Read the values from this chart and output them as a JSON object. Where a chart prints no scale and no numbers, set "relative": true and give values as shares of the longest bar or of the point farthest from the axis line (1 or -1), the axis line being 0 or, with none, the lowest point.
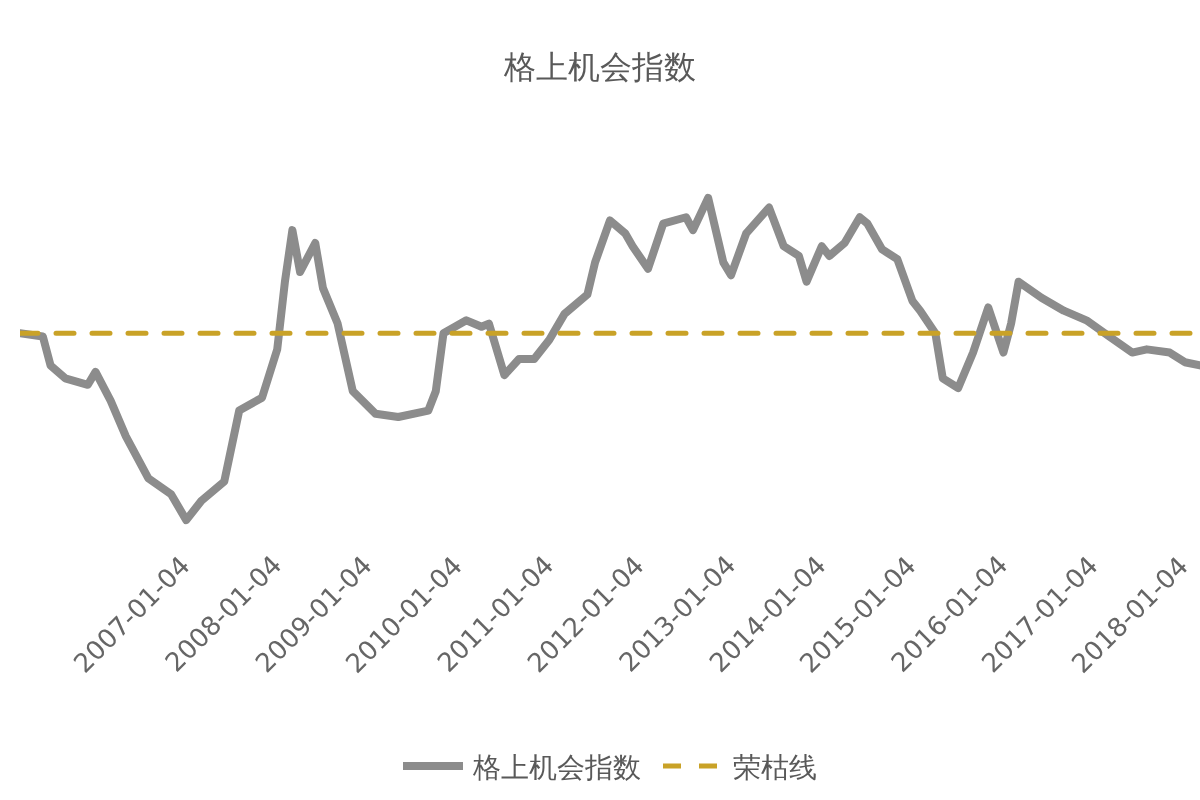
{
  "chart_data": {
    "type": "line",
    "title": "格上机会指数",
    "relative": true,
    "legend": "bottom",
    "marker": "none",
    "line_style": "solid",
    "xlim": [
      "2005-10",
      "2018-10"
    ],
    "xticks": [
      {
        "value": "2007-01-04",
        "label": "2007-01-04"
      },
      {
        "value": "2008-01-04",
        "label": "2008-01-04"
      },
      {
        "value": "2009-01-04",
        "label": "2009-01-04"
      },
      {
        "value": "2010-01-04",
        "label": "2010-01-04"
      },
      {
        "value": "2011-01-04",
        "label": "2011-01-04"
      },
      {
        "value": "2012-01-04",
        "label": "2012-01-04"
      },
      {
        "value": "2013-01-04",
        "label": "2013-01-04"
      },
      {
        "value": "2014-01-04",
        "label": "2014-01-04"
      },
      {
        "value": "2015-01-04",
        "label": "2015-01-04"
      },
      {
        "value": "2016-01-04",
        "label": "2016-01-04"
      },
      {
        "value": "2017-01-04",
        "label": "2017-01-04"
      },
      {
        "value": "2018-01-04",
        "label": "2018-01-04"
      }
    ],
    "x": [
      "2005-10",
      "2006-01",
      "2006-02",
      "2006-04",
      "2006-07",
      "2006-08",
      "2006-10",
      "2006-12",
      "2007-03",
      "2007-06",
      "2007-08",
      "2007-10",
      "2008-01",
      "2008-03",
      "2008-06",
      "2008-08",
      "2008-09",
      "2008-10",
      "2008-11",
      "2009-01",
      "2009-02",
      "2009-04",
      "2009-06",
      "2009-09",
      "2009-12",
      "2010-04",
      "2010-05",
      "2010-06",
      "2010-09",
      "2010-11",
      "2010-12",
      "2011-02",
      "2011-04",
      "2011-06",
      "2011-08",
      "2011-10",
      "2012-01",
      "2012-02",
      "2012-04",
      "2012-06",
      "2012-07",
      "2012-09",
      "2012-11",
      "2013-02",
      "2013-03",
      "2013-05",
      "2013-07",
      "2013-08",
      "2013-10",
      "2014-01",
      "2014-03",
      "2014-05",
      "2014-06",
      "2014-08",
      "2014-09",
      "2014-11",
      "2015-01",
      "2015-02",
      "2015-04",
      "2015-06",
      "2015-08",
      "2015-09",
      "2015-11",
      "2015-12",
      "2016-02",
      "2016-04",
      "2016-06",
      "2016-08",
      "2016-09",
      "2016-10",
      "2017-01",
      "2017-04",
      "2017-07",
      "2017-10",
      "2018-01",
      "2018-03",
      "2018-06",
      "2018-08",
      "2018-10"
    ],
    "series": [
      {
        "name": "格上机会指数",
        "color": "#8c8c8c",
        "values": [
          0.58,
          0.57,
          0.48,
          0.44,
          0.42,
          0.46,
          0.37,
          0.26,
          0.13,
          0.08,
          0,
          0.06,
          0.12,
          0.34,
          0.38,
          0.53,
          0.74,
          0.9,
          0.77,
          0.86,
          0.72,
          0.61,
          0.4,
          0.33,
          0.32,
          0.34,
          0.4,
          0.58,
          0.62,
          0.6,
          0.61,
          0.45,
          0.5,
          0.5,
          0.56,
          0.64,
          0.7,
          0.8,
          0.93,
          0.89,
          0.85,
          0.78,
          0.92,
          0.94,
          0.9,
          1.0,
          0.8,
          0.76,
          0.89,
          0.97,
          0.85,
          0.82,
          0.74,
          0.85,
          0.82,
          0.86,
          0.94,
          0.92,
          0.84,
          0.81,
          0.68,
          0.65,
          0.58,
          0.44,
          0.41,
          0.52,
          0.66,
          0.52,
          0.61,
          0.74,
          0.69,
          0.65,
          0.62,
          0.57,
          0.52,
          0.53,
          0.52,
          0.49,
          0.48
        ]
      }
    ],
    "ref_lines": [
      {
        "axis": "y",
        "value": 0.58,
        "label": "荣枯线",
        "color": "#c9a227",
        "line_style": "dashed"
      }
    ]
  }
}
